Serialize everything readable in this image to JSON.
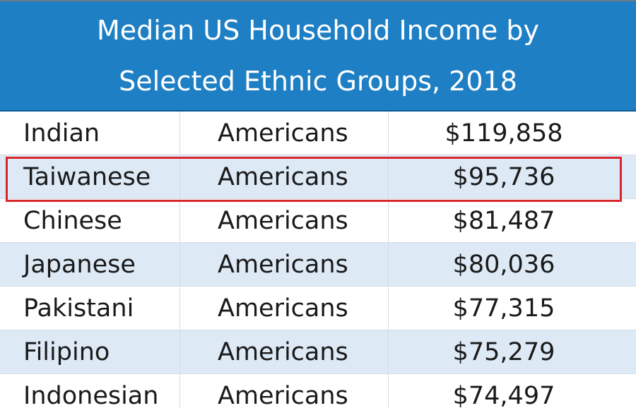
{
  "chart_data": {
    "type": "table",
    "title_lines": [
      "Median US Household Income by",
      "Selected Ethnic Groups, 2018"
    ],
    "columns": [
      "",
      "",
      ""
    ],
    "rows": [
      [
        "Indian",
        "Americans",
        "$119,858"
      ],
      [
        "Taiwanese",
        "Americans",
        "$95,736"
      ],
      [
        "Chinese",
        "Americans",
        "$81,487"
      ],
      [
        "Japanese",
        "Americans",
        "$80,036"
      ],
      [
        "Pakistani",
        "Americans",
        "$77,315"
      ],
      [
        "Filipino",
        "Americans",
        "$75,279"
      ],
      [
        "Indonesian",
        "Americans",
        "$74,497"
      ]
    ],
    "values": [
      119858,
      95736,
      81487,
      80036,
      77315,
      75279,
      74497
    ],
    "highlighted_row": "Taiwanese"
  },
  "colors": {
    "title_background": "#1e7fc4",
    "title_text": "#ffffff",
    "row_alt_background": "#dde9f5",
    "highlight_border": "#d8262e"
  }
}
